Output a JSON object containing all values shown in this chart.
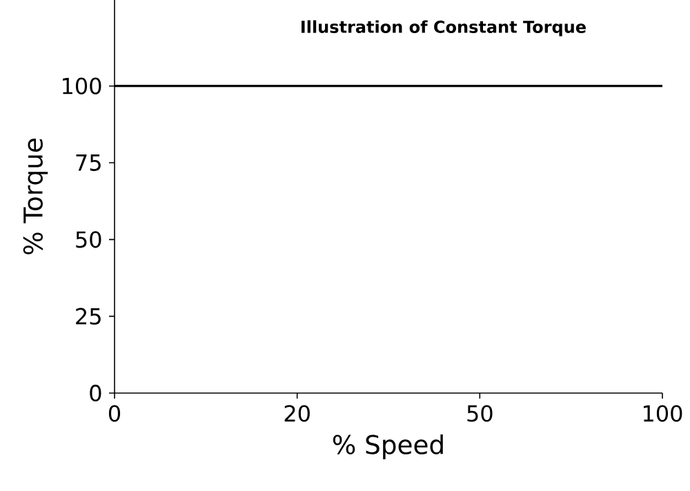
{
  "chart_data": {
    "type": "line",
    "title": "Illustration of Constant Torque",
    "xlabel": "% Speed",
    "ylabel": "% Torque",
    "categories": [
      "0",
      "20",
      "50",
      "100"
    ],
    "series": [
      {
        "color": "#000000",
        "values": [
          100,
          100,
          100,
          100
        ]
      }
    ],
    "ylim": [
      0,
      128
    ],
    "yticks": [
      0,
      25,
      50,
      75,
      100
    ],
    "marker": "none",
    "line_style": "solid"
  }
}
